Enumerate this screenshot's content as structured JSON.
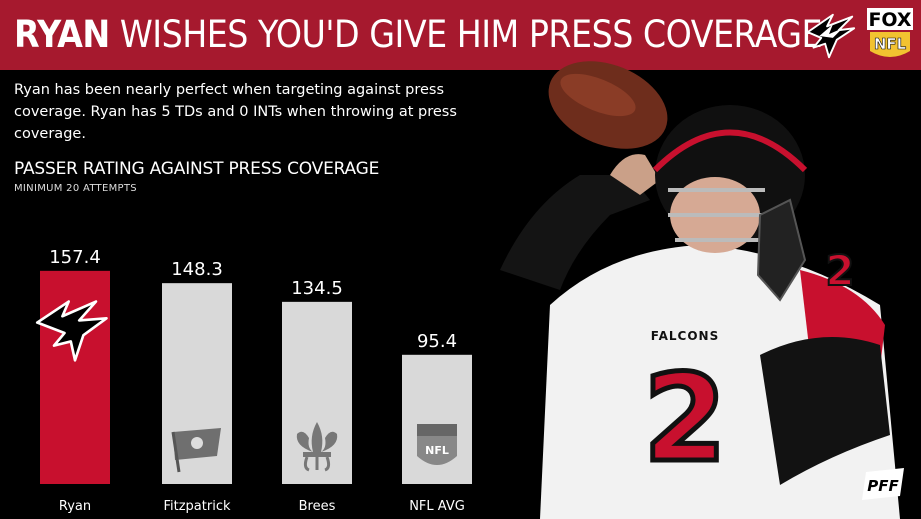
{
  "header": {
    "title_strong": "RYAN",
    "title_rest": "WISHES YOU'D GIVE HIM PRESS COVERAGE",
    "network_line1": "FOX",
    "network_line2": "NFL"
  },
  "intro": {
    "text_a": "Ryan has been",
    "text_b": "nearly perfect",
    "text_c": "when targeting against press coverage. Ryan has 5 TDs and 0 INTs when throwing at press coverage."
  },
  "chart_data": {
    "type": "bar",
    "title": "PASSER RATING AGAINST PRESS COVERAGE",
    "subtitle": "MINIMUM 20 ATTEMPTS",
    "categories": [
      "Ryan",
      "Fitzpatrick",
      "Brees",
      "NFL AVG"
    ],
    "values": [
      157.4,
      148.3,
      134.5,
      95.4
    ],
    "value_labels": [
      "157.4",
      "148.3",
      "134.5",
      "95.4"
    ],
    "bar_colors": [
      "#c8102e",
      "#d9d9d9",
      "#d9d9d9",
      "#d9d9d9"
    ],
    "bar_icons": [
      "falcons-logo-icon",
      "buccaneers-flag-icon",
      "fleur-de-lis-icon",
      "nfl-shield-icon"
    ],
    "ylim": [
      0,
      175
    ],
    "grid": false,
    "legend": "none"
  },
  "jersey": {
    "number": "2",
    "chest_text": "FALCONS"
  },
  "branding": {
    "pff": "PFF"
  },
  "colors": {
    "accent": "#a6192e",
    "bar_highlight": "#c8102e",
    "bar_default": "#d9d9d9"
  }
}
